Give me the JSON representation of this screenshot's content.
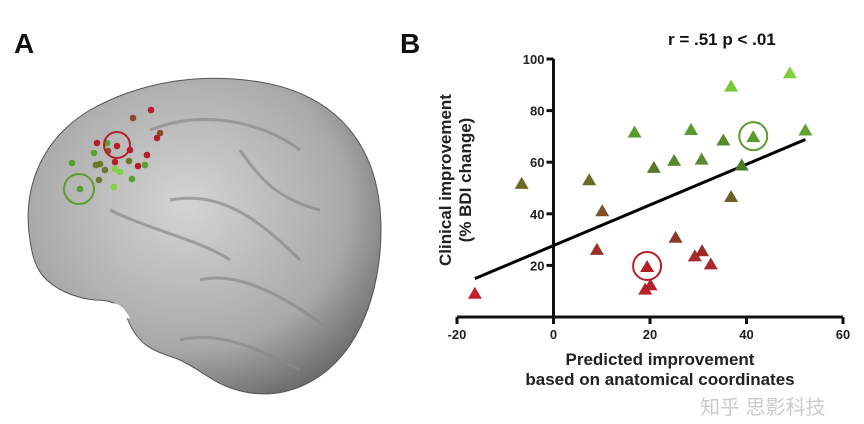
{
  "panel_a": {
    "label": "A",
    "colors": {
      "red": "#b3202a",
      "brown": "#8a4a2a",
      "olive": "#6b7a2a",
      "green": "#5aa02e",
      "light": "#84d040"
    }
  },
  "panel_b": {
    "label": "B",
    "stat_text": "r = .51 p < .01"
  },
  "watermark": "知乎 思影科技",
  "chart_data": {
    "type": "scatter",
    "title": "",
    "xlabel_line1": "Predicted improvement",
    "xlabel_line2": "based on anatomical coordinates",
    "ylabel_line1": "Clinical improvement",
    "ylabel_line2": "(% BDI change)",
    "xlim": [
      -20,
      60
    ],
    "ylim": [
      0,
      100
    ],
    "xticks": [
      "-20",
      "0",
      "20",
      "40",
      "60"
    ],
    "yticks": [
      "20",
      "40",
      "60",
      "80",
      "100"
    ],
    "marker": "triangle",
    "points": [
      {
        "x": -16.3,
        "y": 9,
        "color": "#c0202c"
      },
      {
        "x": -6.6,
        "y": 51.6,
        "color": "#6b6a22"
      },
      {
        "x": 7.4,
        "y": 53,
        "color": "#6b6a22"
      },
      {
        "x": 10.1,
        "y": 41,
        "color": "#80502a"
      },
      {
        "x": 9,
        "y": 26,
        "color": "#9a3026"
      },
      {
        "x": 16.8,
        "y": 71.5,
        "color": "#5c9a30"
      },
      {
        "x": 19.4,
        "y": 19.4,
        "color": "#b3202a",
        "circled": true
      },
      {
        "x": 19,
        "y": 10.6,
        "color": "#b8202c"
      },
      {
        "x": 20.1,
        "y": 12.3,
        "color": "#b3202a"
      },
      {
        "x": 20.8,
        "y": 57.8,
        "color": "#5a7a28"
      },
      {
        "x": 25,
        "y": 60.5,
        "color": "#5a8a2c"
      },
      {
        "x": 25.3,
        "y": 30.7,
        "color": "#8a3a26"
      },
      {
        "x": 28.5,
        "y": 72.5,
        "color": "#5c9a30"
      },
      {
        "x": 30.7,
        "y": 61,
        "color": "#5a8a2c"
      },
      {
        "x": 29.3,
        "y": 23.5,
        "color": "#a82a2a"
      },
      {
        "x": 30.8,
        "y": 25.5,
        "color": "#9e2a28"
      },
      {
        "x": 32.6,
        "y": 20.4,
        "color": "#a82a2e"
      },
      {
        "x": 35.2,
        "y": 68.4,
        "color": "#5a8a2c"
      },
      {
        "x": 36.8,
        "y": 89.3,
        "color": "#76c83a"
      },
      {
        "x": 36.8,
        "y": 46.5,
        "color": "#6b5e26"
      },
      {
        "x": 39,
        "y": 58.7,
        "color": "#4a7a24"
      },
      {
        "x": 41.4,
        "y": 69.7,
        "color": "#5c9a30",
        "circled": true
      },
      {
        "x": 49,
        "y": 94.5,
        "color": "#80d040"
      },
      {
        "x": 52.2,
        "y": 72.3,
        "color": "#62a232"
      }
    ],
    "fit_line": {
      "x": [
        -16.3,
        52.2
      ],
      "slope": 0.787,
      "intercept": 27.7
    }
  }
}
